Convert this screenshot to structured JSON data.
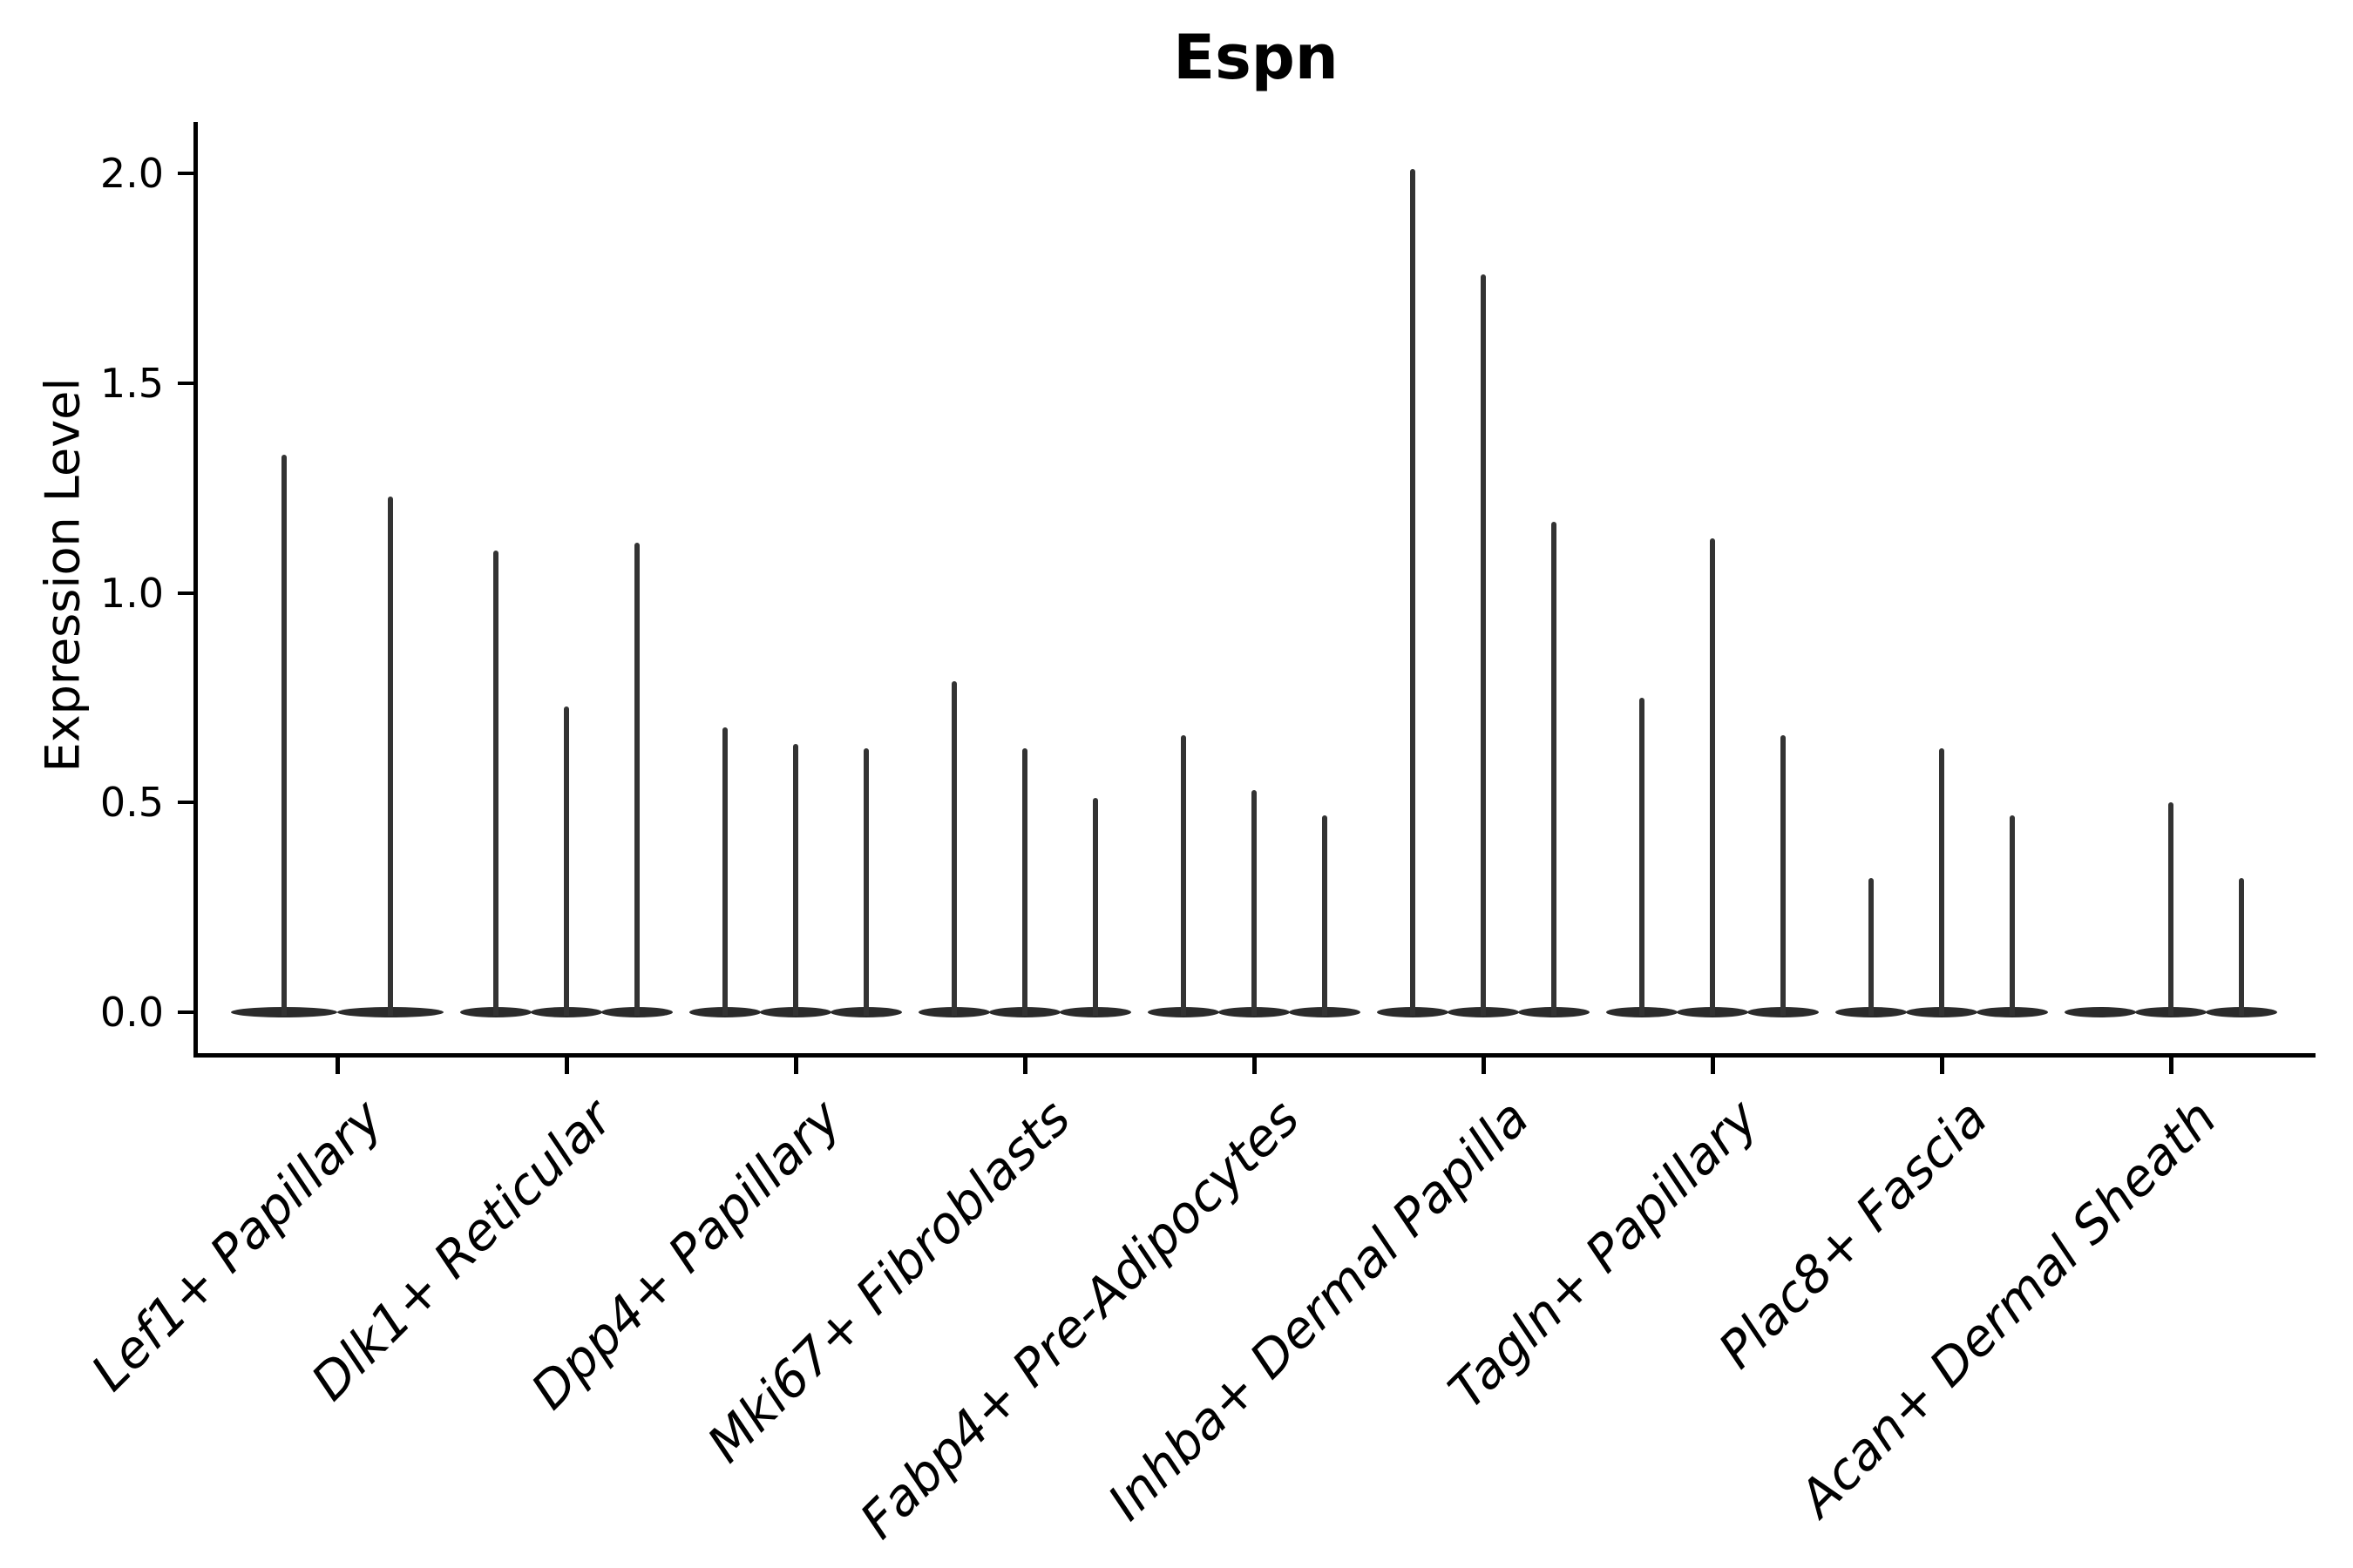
{
  "title": "Espn",
  "y_axis": {
    "label": "Expression Level",
    "tick_labels": [
      "0.0",
      "0.5",
      "1.0",
      "1.5",
      "2.0"
    ],
    "tick_values": [
      0.0,
      0.5,
      1.0,
      1.5,
      2.0
    ]
  },
  "colors": {
    "background": "#ffffff",
    "axis": "#000000",
    "violin_base": "#2b2b2b",
    "violin_spike": "#333333"
  },
  "chart_data": {
    "type": "violin",
    "title": "Espn",
    "xlabel": "",
    "ylabel": "Expression Level",
    "ylim": [
      -0.1,
      2.1
    ],
    "yticks": [
      0.0,
      0.5,
      1.0,
      1.5,
      2.0
    ],
    "grid": false,
    "legend": false,
    "description": "Zero-inflated expression violins: each violin is a flat blob at 0 with a thin vertical spike up to the max expression value.",
    "categories": [
      "Lef1+ Papillary",
      "Dlk1+ Reticular",
      "Dpp4+ Papillary",
      "Mki67+ Fibroblasts",
      "Fabp4+ Pre-Adipocytes",
      "Inhba+ Dermal Papilla",
      "Tagln+ Papillary",
      "Plac8+ Fascia",
      "Acan+ Dermal Sheath"
    ],
    "series": [
      {
        "category": "Lef1+ Papillary",
        "violin_max_values": [
          1.33,
          1.23
        ]
      },
      {
        "category": "Dlk1+ Reticular",
        "violin_max_values": [
          1.1,
          0.73,
          1.12
        ]
      },
      {
        "category": "Dpp4+ Papillary",
        "violin_max_values": [
          0.68,
          0.64,
          0.63
        ]
      },
      {
        "category": "Mki67+ Fibroblasts",
        "violin_max_values": [
          0.79,
          0.63,
          0.51
        ]
      },
      {
        "category": "Fabp4+ Pre-Adipocytes",
        "violin_max_values": [
          0.66,
          0.53,
          0.47
        ]
      },
      {
        "category": "Inhba+ Dermal Papilla",
        "violin_max_values": [
          2.01,
          1.76,
          1.17
        ]
      },
      {
        "category": "Tagln+ Papillary",
        "violin_max_values": [
          0.75,
          1.13,
          0.66
        ]
      },
      {
        "category": "Plac8+ Fascia",
        "violin_max_values": [
          0.32,
          0.63,
          0.47
        ]
      },
      {
        "category": "Acan+ Dermal Sheath",
        "violin_max_values": [
          0.0,
          0.5,
          0.32
        ]
      }
    ]
  }
}
